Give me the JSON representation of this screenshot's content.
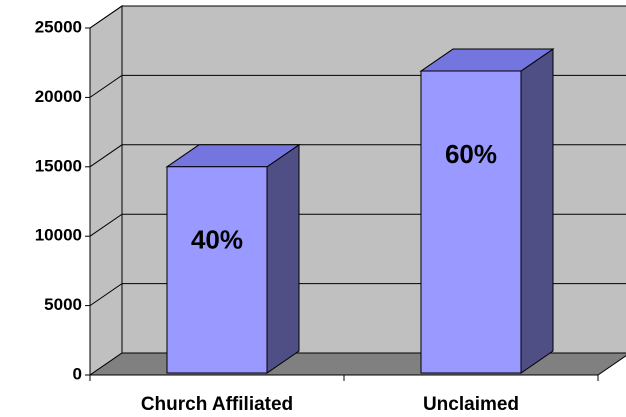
{
  "chart_data": {
    "type": "bar3d",
    "categories": [
      "Church Affiliated",
      "Unclaimed"
    ],
    "values": [
      15000,
      21900
    ],
    "annotations": [
      "40%",
      "60%"
    ],
    "colors": {
      "front": "#9999ff",
      "top": "#7575e0",
      "side": "#4f4f85",
      "wall": "#c0c0c0",
      "floor": "#808080"
    },
    "ylim": [
      0,
      25000
    ],
    "yticks": [
      0,
      5000,
      10000,
      15000,
      20000,
      25000
    ],
    "grid": true
  }
}
